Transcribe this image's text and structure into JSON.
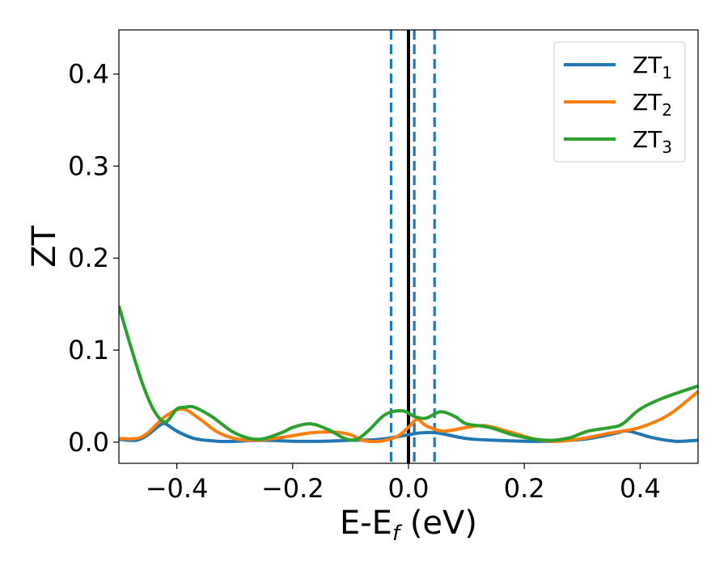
{
  "chart_data": {
    "type": "line",
    "title": "",
    "xlabel_main": "E-E",
    "xlabel_sub": "f",
    "xlabel_tail": " (eV)",
    "ylabel": "ZT",
    "xlim": [
      -0.5,
      0.5
    ],
    "ylim": [
      -0.023,
      0.448
    ],
    "xticks": [
      -0.4,
      -0.2,
      0.0,
      0.2,
      0.4
    ],
    "xtick_labels": [
      "−0.4",
      "−0.2",
      "0.0",
      "0.2",
      "0.4"
    ],
    "yticks": [
      0.0,
      0.1,
      0.2,
      0.3,
      0.4
    ],
    "ytick_labels": [
      "0.0",
      "0.1",
      "0.2",
      "0.3",
      "0.4"
    ],
    "grid": false,
    "legend_position": "top-right",
    "vlines": [
      {
        "x": 0.0,
        "style": "solid",
        "color": "#000000"
      },
      {
        "x": -0.03,
        "style": "dashed",
        "color": "#1f77b4"
      },
      {
        "x": 0.01,
        "style": "dashed",
        "color": "#1f77b4"
      },
      {
        "x": 0.045,
        "style": "dashed",
        "color": "#1f77b4"
      }
    ],
    "series": [
      {
        "name": "ZT",
        "sub": "1",
        "color": "#1f77b4",
        "x": [
          -0.5,
          -0.47,
          -0.45,
          -0.43,
          -0.42,
          -0.4,
          -0.37,
          -0.33,
          -0.3,
          -0.25,
          -0.2,
          -0.15,
          -0.1,
          -0.05,
          0.0,
          0.02,
          0.05,
          0.1,
          0.15,
          0.2,
          0.25,
          0.3,
          0.33,
          0.36,
          0.38,
          0.42,
          0.46,
          0.5
        ],
        "y": [
          0.003,
          0.002,
          0.008,
          0.018,
          0.02,
          0.012,
          0.004,
          0.001,
          0.001,
          0.002,
          0.001,
          0.001,
          0.002,
          0.003,
          0.008,
          0.01,
          0.01,
          0.004,
          0.002,
          0.001,
          0.001,
          0.003,
          0.006,
          0.01,
          0.012,
          0.005,
          0.001,
          0.002
        ]
      },
      {
        "name": "ZT",
        "sub": "2",
        "color": "#ff7f0e",
        "x": [
          -0.5,
          -0.47,
          -0.45,
          -0.42,
          -0.39,
          -0.36,
          -0.33,
          -0.3,
          -0.27,
          -0.22,
          -0.17,
          -0.13,
          -0.1,
          -0.08,
          -0.05,
          -0.02,
          0.0,
          0.015,
          0.03,
          0.06,
          0.1,
          0.13,
          0.17,
          0.22,
          0.26,
          0.3,
          0.35,
          0.4,
          0.45,
          0.5
        ],
        "y": [
          0.004,
          0.004,
          0.01,
          0.028,
          0.036,
          0.025,
          0.011,
          0.004,
          0.002,
          0.005,
          0.01,
          0.011,
          0.008,
          0.002,
          0.001,
          0.006,
          0.016,
          0.025,
          0.018,
          0.012,
          0.016,
          0.018,
          0.012,
          0.003,
          0.001,
          0.004,
          0.01,
          0.016,
          0.03,
          0.055
        ]
      },
      {
        "name": "ZT",
        "sub": "3",
        "color": "#2ca02c",
        "x": [
          -0.5,
          -0.48,
          -0.46,
          -0.44,
          -0.42,
          -0.4,
          -0.385,
          -0.37,
          -0.34,
          -0.3,
          -0.26,
          -0.22,
          -0.2,
          -0.17,
          -0.14,
          -0.11,
          -0.09,
          -0.07,
          -0.04,
          -0.01,
          0.01,
          0.03,
          0.055,
          0.08,
          0.1,
          0.14,
          0.18,
          0.22,
          0.25,
          0.28,
          0.31,
          0.35,
          0.37,
          0.4,
          0.44,
          0.5
        ],
        "y": [
          0.148,
          0.105,
          0.065,
          0.035,
          0.022,
          0.036,
          0.038,
          0.038,
          0.028,
          0.01,
          0.003,
          0.01,
          0.016,
          0.02,
          0.014,
          0.004,
          0.003,
          0.012,
          0.03,
          0.034,
          0.028,
          0.026,
          0.033,
          0.028,
          0.02,
          0.016,
          0.008,
          0.003,
          0.002,
          0.005,
          0.012,
          0.016,
          0.02,
          0.036,
          0.048,
          0.061
        ]
      }
    ]
  }
}
